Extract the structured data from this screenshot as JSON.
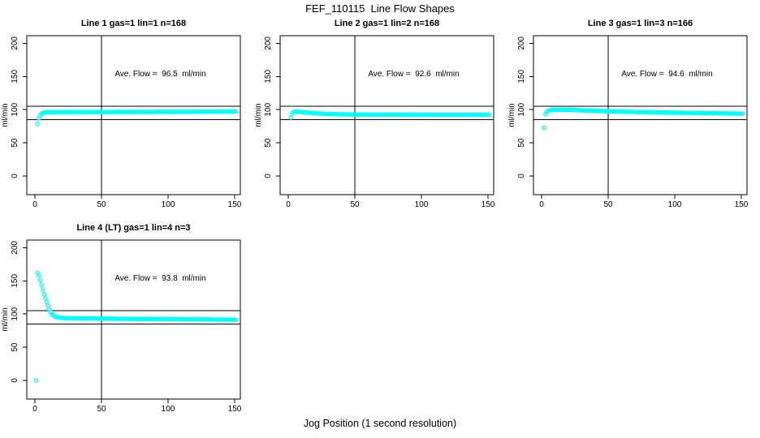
{
  "page": {
    "title": "FEF_110115  Line Flow Shapes",
    "xlabel": "Jog Position (1 second resolution)"
  },
  "colors": {
    "points": "#00FFFF",
    "axis": "#000000",
    "text": "#000000",
    "background": "#FFFFFF"
  },
  "chart_data": [
    {
      "type": "scatter",
      "title": "Line 1 gas=1 lin=1 n=168",
      "annotation": "Ave. Flow =  96.5  ml/min",
      "ave_flow_ml_min": 96.5,
      "n": 168,
      "ylabel": "ml/min",
      "x_ticks": [
        0,
        50,
        100,
        150
      ],
      "y_ticks": [
        0,
        50,
        100,
        150,
        200
      ],
      "xlim": [
        -6,
        154
      ],
      "ylim": [
        -28,
        213
      ],
      "vline_x": 50,
      "hlines_y": [
        85,
        105
      ],
      "marker": "open-circle",
      "x_step": 1,
      "series_knots": [
        [
          2,
          78.5
        ],
        [
          3,
          87
        ],
        [
          4,
          91
        ],
        [
          5,
          93.5
        ],
        [
          6,
          95
        ],
        [
          8,
          96
        ],
        [
          12,
          96.3
        ],
        [
          30,
          96.4
        ],
        [
          60,
          96.5
        ],
        [
          100,
          96.7
        ],
        [
          151,
          97
        ]
      ],
      "outlier_points": []
    },
    {
      "type": "scatter",
      "title": "Line 2 gas=1 lin=2 n=168",
      "annotation": "Ave. Flow =  92.6  ml/min",
      "ave_flow_ml_min": 92.6,
      "n": 168,
      "ylabel": "ml/min",
      "x_ticks": [
        0,
        50,
        100,
        150
      ],
      "y_ticks": [
        0,
        50,
        100,
        150,
        200
      ],
      "xlim": [
        -6,
        154
      ],
      "ylim": [
        -28,
        213
      ],
      "vline_x": 50,
      "hlines_y": [
        85,
        105
      ],
      "marker": "open-circle",
      "x_step": 1,
      "series_knots": [
        [
          2,
          88
        ],
        [
          3,
          94
        ],
        [
          4,
          96.5
        ],
        [
          5,
          97
        ],
        [
          8,
          96.8
        ],
        [
          15,
          95.5
        ],
        [
          25,
          94
        ],
        [
          40,
          93
        ],
        [
          60,
          92.5
        ],
        [
          100,
          92.3
        ],
        [
          151,
          92.3
        ]
      ],
      "outlier_points": []
    },
    {
      "type": "scatter",
      "title": "Line 3 gas=1 lin=3 n=166",
      "annotation": "Ave. Flow =  94.6  ml/min",
      "ave_flow_ml_min": 94.6,
      "n": 166,
      "ylabel": "ml/min",
      "x_ticks": [
        0,
        50,
        100,
        150
      ],
      "y_ticks": [
        0,
        50,
        100,
        150,
        200
      ],
      "xlim": [
        -6,
        154
      ],
      "ylim": [
        -28,
        213
      ],
      "vline_x": 50,
      "hlines_y": [
        85,
        105
      ],
      "marker": "open-circle",
      "x_step": 1,
      "series_knots": [
        [
          3,
          93
        ],
        [
          4,
          96.5
        ],
        [
          5,
          98
        ],
        [
          7,
          99.5
        ],
        [
          10,
          100
        ],
        [
          20,
          99.7
        ],
        [
          40,
          98.3
        ],
        [
          60,
          97
        ],
        [
          90,
          95.8
        ],
        [
          120,
          94.8
        ],
        [
          151,
          94
        ]
      ],
      "outlier_points": [
        [
          2,
          72.5
        ]
      ]
    },
    {
      "type": "scatter",
      "title": "Line 4 (LT) gas=1 lin=4 n=3",
      "annotation": "Ave. Flow =  93.8  ml/min",
      "ave_flow_ml_min": 93.8,
      "n": 3,
      "ylabel": "ml/min",
      "x_ticks": [
        0,
        50,
        100,
        150
      ],
      "y_ticks": [
        0,
        50,
        100,
        150,
        200
      ],
      "xlim": [
        -6,
        154
      ],
      "ylim": [
        -28,
        213
      ],
      "vline_x": 50,
      "hlines_y": [
        85,
        105
      ],
      "marker": "open-circle",
      "x_step": 1,
      "series_knots": [
        [
          2,
          162
        ],
        [
          3,
          158
        ],
        [
          4,
          151
        ],
        [
          5,
          144
        ],
        [
          6,
          137
        ],
        [
          7,
          130
        ],
        [
          8,
          124
        ],
        [
          9,
          118
        ],
        [
          10,
          112
        ],
        [
          11,
          107
        ],
        [
          12,
          103
        ],
        [
          13,
          100
        ],
        [
          14,
          98
        ],
        [
          15,
          96.5
        ],
        [
          17,
          95
        ],
        [
          20,
          94.2
        ],
        [
          30,
          93.6
        ],
        [
          50,
          93.2
        ],
        [
          80,
          92.6
        ],
        [
          120,
          92
        ],
        [
          151,
          91.4
        ]
      ],
      "outlier_points": [
        [
          1,
          0
        ]
      ]
    }
  ]
}
